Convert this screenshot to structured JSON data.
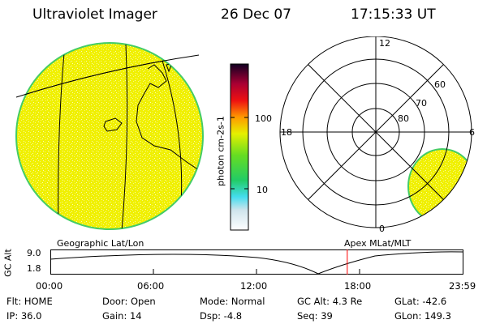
{
  "header": {
    "instrument": "Ultraviolet Imager",
    "date": "26 Dec 07",
    "time": "17:15:33 UT"
  },
  "colorbar": {
    "label": "photon cm-2s-1",
    "ticks": [
      "100",
      "10"
    ]
  },
  "left_panel": {
    "caption": "Geographic Lat/Lon"
  },
  "polar_plot": {
    "caption": "Apex MLat/MLT",
    "mlt_labels": {
      "top": "12",
      "left": "18",
      "right": "6",
      "bottom": "0"
    },
    "lat_labels": [
      "60",
      "70",
      "80"
    ]
  },
  "altitude_plot": {
    "ylabel": "GC Alt",
    "yticks": [
      "9.0",
      "1.8"
    ],
    "xticks": [
      "00:00",
      "06:00",
      "12:00",
      "18:00",
      "23:59"
    ],
    "marker_time_hours": 17.26,
    "marker_color": "#ff0000"
  },
  "status": {
    "flt": "Flt: HOME",
    "ip": "IP: 36.0",
    "door": "Door: Open",
    "gain": "Gain: 14",
    "mode": "Mode: Normal",
    "dsp": "Dsp:     -4.8",
    "gcalt": "GC Alt: 4.3 Re",
    "seq": "Seq: 39",
    "glat": "GLat: -42.6",
    "glon": "GLon: 149.3"
  },
  "colors": {
    "glow": "#f0f000",
    "glow_speckle": "#f7f77c",
    "edge": "#44cc66"
  }
}
